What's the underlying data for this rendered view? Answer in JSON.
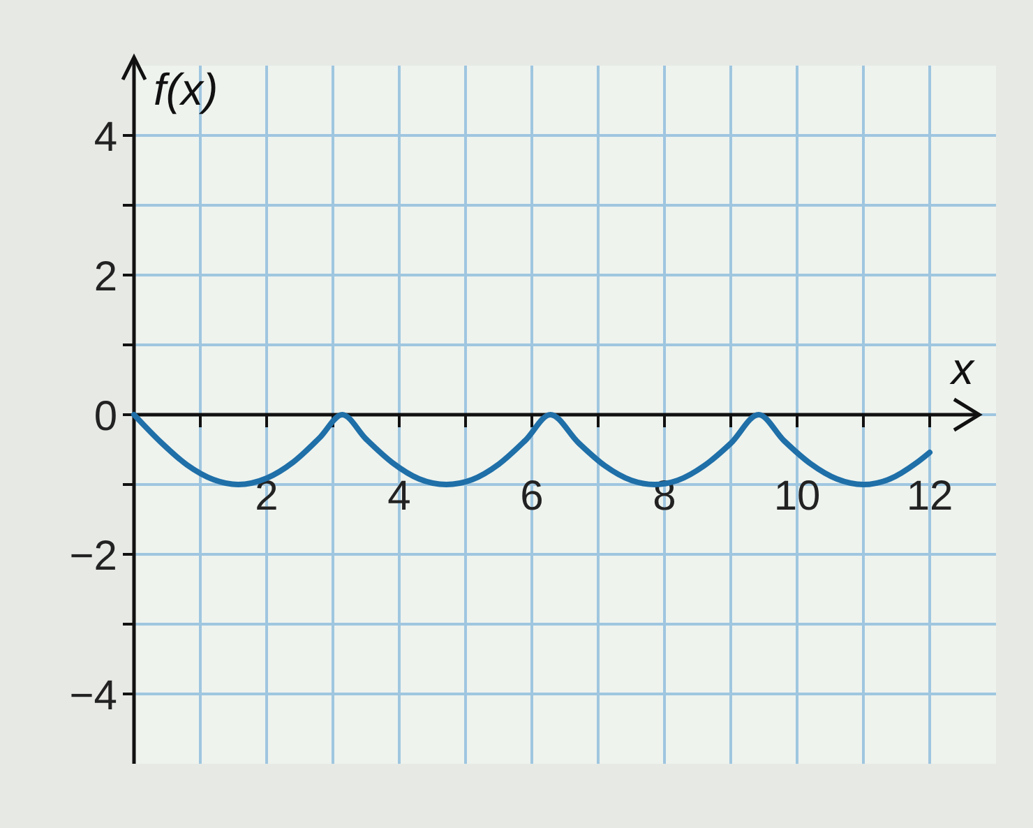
{
  "chart_data": {
    "type": "line",
    "xlabel": "x",
    "ylabel": "f(x)",
    "xlim": [
      0,
      13
    ],
    "ylim": [
      -5,
      5
    ],
    "xticks": [
      {
        "value": 1,
        "label": null
      },
      2,
      {
        "value": 3,
        "label": null
      },
      4,
      {
        "value": 5,
        "label": null
      },
      6,
      {
        "value": 7,
        "label": null
      },
      8,
      {
        "value": 9,
        "label": null
      },
      10,
      {
        "value": 11,
        "label": null
      },
      12
    ],
    "yticks": [
      {
        "value": -4,
        "label": "−4"
      },
      {
        "value": -3,
        "label": null
      },
      {
        "value": -2,
        "label": "−2"
      },
      {
        "value": -1,
        "label": null
      },
      0,
      {
        "value": 1,
        "label": null
      },
      2,
      {
        "value": 3,
        "label": null
      },
      4
    ],
    "grid": true,
    "line_style": "solid",
    "marker": "none",
    "series": [
      {
        "color": "#1f6fa8",
        "x": [
          0,
          0.4,
          0.8,
          1.2,
          1.57,
          2.0,
          2.4,
          2.8,
          3.14,
          3.5,
          3.9,
          4.3,
          4.71,
          5.1,
          5.5,
          5.9,
          6.28,
          6.7,
          7.1,
          7.5,
          7.85,
          8.2,
          8.6,
          9.0,
          9.42,
          9.8,
          10.2,
          10.6,
          11.0,
          11.4,
          11.8,
          12.0
        ],
        "values": [
          0,
          -0.39,
          -0.72,
          -0.93,
          -1,
          -0.91,
          -0.68,
          -0.33,
          0,
          -0.35,
          -0.69,
          -0.92,
          -1,
          -0.93,
          -0.71,
          -0.37,
          0,
          -0.4,
          -0.73,
          -0.94,
          -1,
          -0.94,
          -0.73,
          -0.41,
          0,
          -0.37,
          -0.7,
          -0.92,
          -1,
          -0.92,
          -0.69,
          -0.54
        ]
      }
    ]
  }
}
